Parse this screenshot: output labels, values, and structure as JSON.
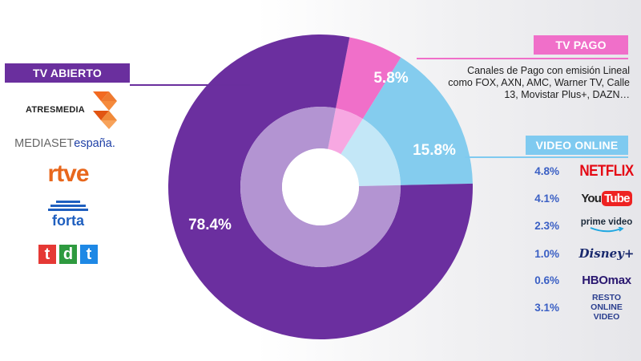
{
  "chart_data": {
    "type": "pie",
    "title": "",
    "start_angle_deg": 11,
    "inner_ring": true,
    "series": [
      {
        "name": "TV PAGO",
        "value": 5.8,
        "label": "5.8%",
        "color": "#f06fc9",
        "inner_color": "#f7a8e2"
      },
      {
        "name": "VIDEO ONLINE",
        "value": 15.8,
        "label": "15.8%",
        "color": "#84ccee",
        "inner_color": "#c3e7f7"
      },
      {
        "name": "TV ABIERTO",
        "value": 78.4,
        "label": "78.4%",
        "color": "#6b2f9f",
        "inner_color": "#b394d2"
      }
    ]
  },
  "labels": {
    "tv_abierto": "TV ABIERTO",
    "tv_pago": "TV PAGO",
    "video_online": "VIDEO ONLINE",
    "tv_pago_desc": "Canales de Pago con emisión Lineal como FOX, AXN, AMC, Warner TV, Calle 13, Movistar Plus+, DAZN…"
  },
  "open_tv_logos": {
    "atresmedia": "ATRESMEDIA",
    "mediaset_a": "MEDIASET",
    "mediaset_b": "españa.",
    "rtve": "rtve",
    "forta": "forta",
    "tdt": [
      "t",
      "d",
      "t"
    ],
    "tdt_colors": [
      "#e53935",
      "#2e9a3f",
      "#1e88e5"
    ]
  },
  "online_video": [
    {
      "value": "4.8%",
      "brand": "NETFLIX"
    },
    {
      "value": "4.1%",
      "brand_a": "You",
      "brand_b": "Tube"
    },
    {
      "value": "2.3%",
      "brand": "prime video"
    },
    {
      "value": "1.0%",
      "brand": "Disney+"
    },
    {
      "value": "0.6%",
      "brand": "HBOmax"
    },
    {
      "value": "3.1%",
      "brand_a": "RESTO",
      "brand_b": "ONLINE VIDEO"
    }
  ]
}
